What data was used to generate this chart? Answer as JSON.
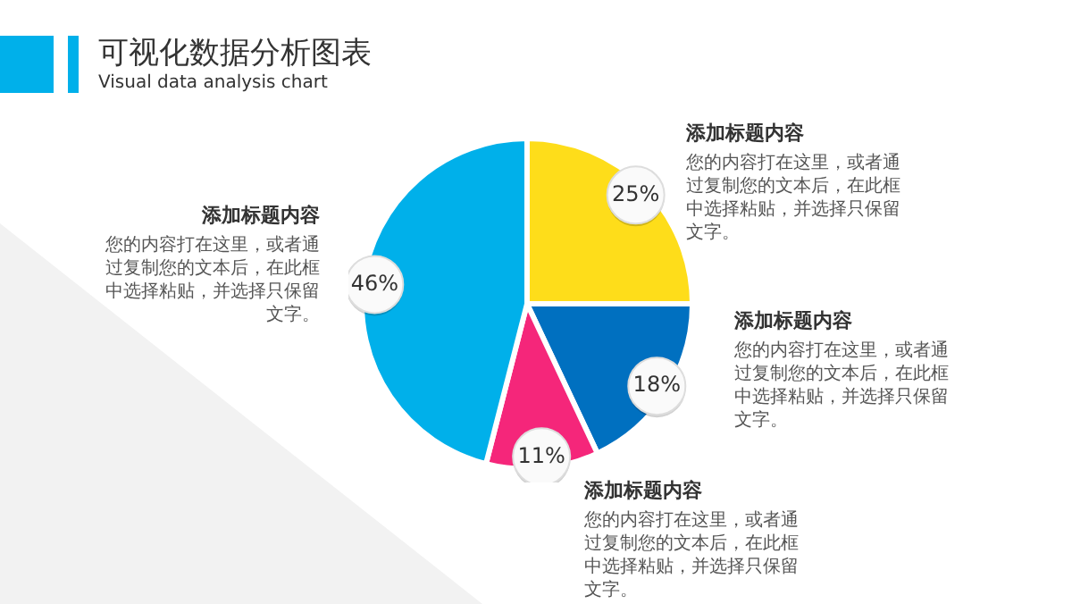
{
  "chart_data": {
    "type": "pie",
    "title": "可视化数据分析图表",
    "subtitle": "Visual data analysis chart",
    "categories": [
      "添加标题内容",
      "添加标题内容",
      "添加标题内容",
      "添加标题内容"
    ],
    "values": [
      25,
      18,
      11,
      46
    ],
    "colors": [
      "#fedd1a",
      "#0070c0",
      "#f5267a",
      "#00b0ea"
    ],
    "value_labels": [
      "25%",
      "18%",
      "11%",
      "46%"
    ],
    "annotations": [
      "您的内容打在这里，或者通过复制您的文本后，在此框中选择粘贴，并选择只保留文字。",
      "您的内容打在这里，或者通过复制您的文本后，在此框中选择粘贴，并选择只保留文字。",
      "您的内容打在这里，或者通过复制您的文本后，在此框中选择粘贴，并选择只保留文字。",
      "您的内容打在这里，或者通过复制您的文本后，在此框中选择粘贴，并选择只保留文字。"
    ],
    "legend": false
  }
}
